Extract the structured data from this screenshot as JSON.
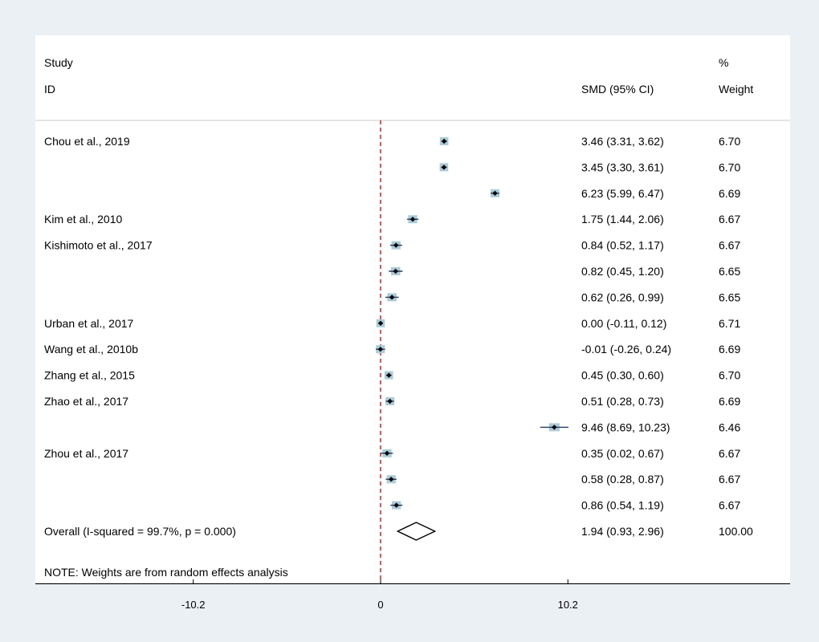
{
  "chart_data": {
    "type": "forest",
    "headers": {
      "study_line1": "Study",
      "study_line2": "ID",
      "smd_header": "SMD (95% CI)",
      "weight_line1": "%",
      "weight_line2": "Weight"
    },
    "x_ticks": [
      {
        "value": -10.2,
        "label": "-10.2"
      },
      {
        "value": 0,
        "label": "0"
      },
      {
        "value": 10.2,
        "label": "10.2"
      }
    ],
    "xlim": [
      -18.8,
      22.3
    ],
    "null_line": 0,
    "rows": [
      {
        "study": "Chou et al., 2019",
        "smd": 3.46,
        "lo": 3.31,
        "hi": 3.62,
        "ci_text": "3.46 (3.31, 3.62)",
        "weight": "6.70"
      },
      {
        "study": "",
        "smd": 3.45,
        "lo": 3.3,
        "hi": 3.61,
        "ci_text": "3.45 (3.30, 3.61)",
        "weight": "6.70"
      },
      {
        "study": "",
        "smd": 6.23,
        "lo": 5.99,
        "hi": 6.47,
        "ci_text": "6.23 (5.99, 6.47)",
        "weight": "6.69"
      },
      {
        "study": "Kim et al., 2010",
        "smd": 1.75,
        "lo": 1.44,
        "hi": 2.06,
        "ci_text": "1.75 (1.44, 2.06)",
        "weight": "6.67"
      },
      {
        "study": "Kishimoto et al., 2017",
        "smd": 0.84,
        "lo": 0.52,
        "hi": 1.17,
        "ci_text": "0.84 (0.52, 1.17)",
        "weight": "6.67"
      },
      {
        "study": "",
        "smd": 0.82,
        "lo": 0.45,
        "hi": 1.2,
        "ci_text": "0.82 (0.45, 1.20)",
        "weight": "6.65"
      },
      {
        "study": "",
        "smd": 0.62,
        "lo": 0.26,
        "hi": 0.99,
        "ci_text": "0.62 (0.26, 0.99)",
        "weight": "6.65"
      },
      {
        "study": "Urban et al., 2017",
        "smd": 0.0,
        "lo": -0.11,
        "hi": 0.12,
        "ci_text": "0.00 (-0.11, 0.12)",
        "weight": "6.71"
      },
      {
        "study": "Wang et al., 2010b",
        "smd": -0.01,
        "lo": -0.26,
        "hi": 0.24,
        "ci_text": "-0.01 (-0.26, 0.24)",
        "weight": "6.69"
      },
      {
        "study": "Zhang et al., 2015",
        "smd": 0.45,
        "lo": 0.3,
        "hi": 0.6,
        "ci_text": "0.45 (0.30, 0.60)",
        "weight": "6.70"
      },
      {
        "study": "Zhao et al., 2017",
        "smd": 0.51,
        "lo": 0.28,
        "hi": 0.73,
        "ci_text": "0.51 (0.28, 0.73)",
        "weight": "6.69"
      },
      {
        "study": "",
        "smd": 9.46,
        "lo": 8.69,
        "hi": 10.23,
        "ci_text": "9.46 (8.69, 10.23)",
        "weight": "6.46"
      },
      {
        "study": "Zhou et al., 2017",
        "smd": 0.35,
        "lo": 0.02,
        "hi": 0.67,
        "ci_text": "0.35 (0.02, 0.67)",
        "weight": "6.67"
      },
      {
        "study": "",
        "smd": 0.58,
        "lo": 0.28,
        "hi": 0.87,
        "ci_text": "0.58 (0.28, 0.87)",
        "weight": "6.67"
      },
      {
        "study": "",
        "smd": 0.86,
        "lo": 0.54,
        "hi": 1.19,
        "ci_text": "0.86 (0.54, 1.19)",
        "weight": "6.67"
      }
    ],
    "overall": {
      "label": "Overall  (I-squared = 99.7%, p = 0.000)",
      "smd": 1.94,
      "lo": 0.93,
      "hi": 2.96,
      "ci_text": "1.94 (0.93, 2.96)",
      "weight": "100.00"
    },
    "note": "NOTE: Weights are from random effects analysis",
    "colors": {
      "background": "#eaf0f3",
      "panel": "#ffffff",
      "null_line": "#e0201c",
      "ci_line": "#1f3b70",
      "weight_box": "#a8ccd8",
      "point": "#000000",
      "axis": "#000000"
    }
  }
}
